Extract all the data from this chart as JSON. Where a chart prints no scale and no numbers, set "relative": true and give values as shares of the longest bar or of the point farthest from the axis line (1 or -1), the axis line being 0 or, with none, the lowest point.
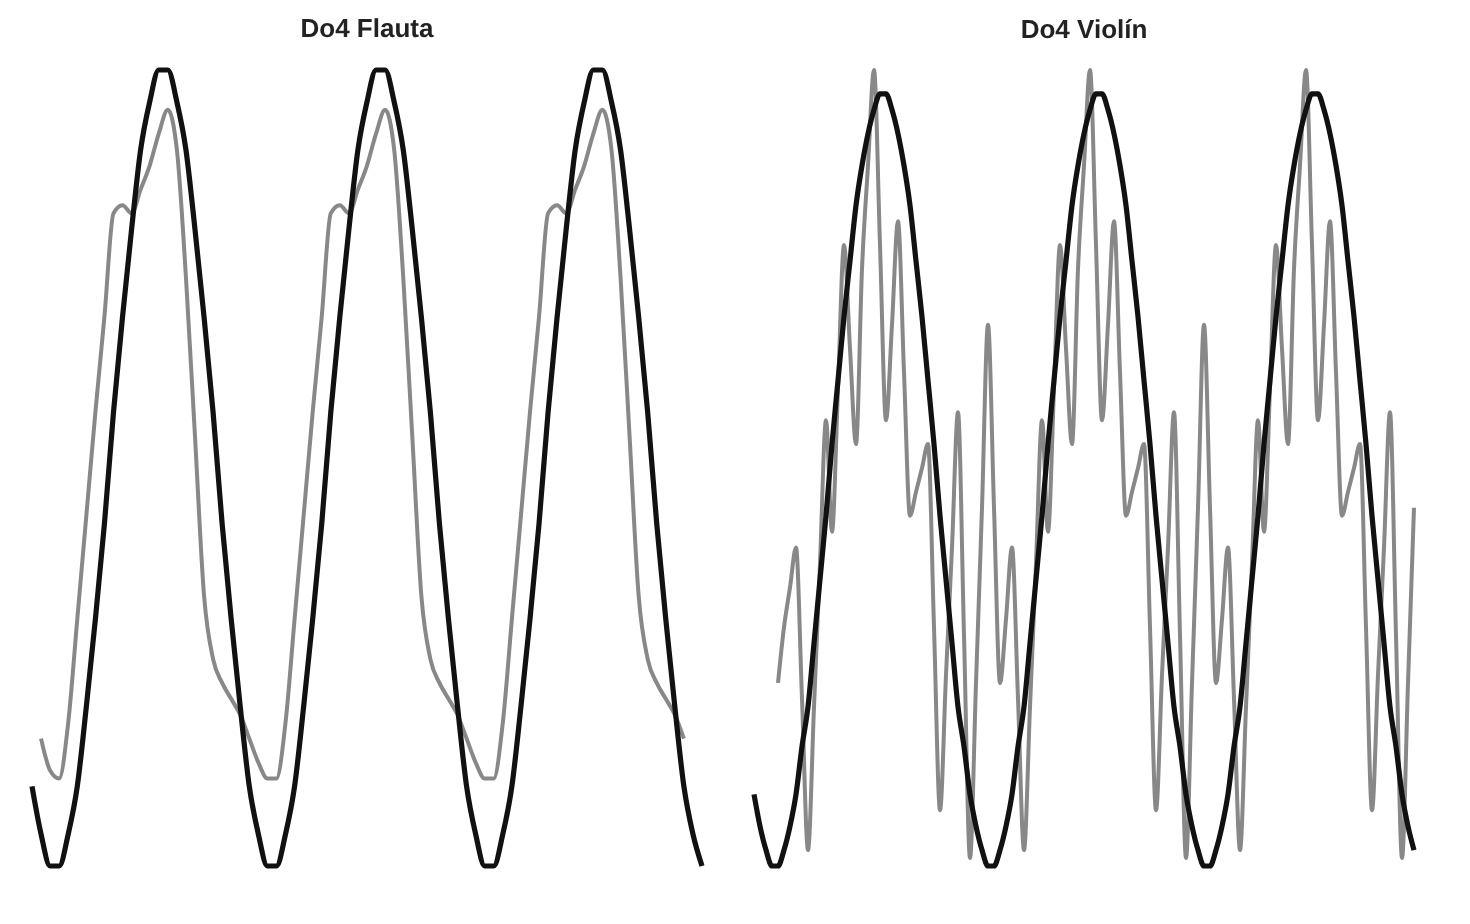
{
  "chart_data": [
    {
      "type": "line",
      "title": "Do4 Flauta",
      "relative": true,
      "categories": [
        null,
        null,
        null,
        null,
        null,
        null,
        null,
        null,
        null,
        null,
        null,
        null,
        null,
        null,
        null,
        null,
        null,
        null,
        null,
        null,
        null,
        null,
        null,
        null,
        null,
        null,
        null,
        null,
        null,
        null,
        null,
        null,
        null,
        null,
        null,
        null,
        null,
        null,
        null,
        null,
        null,
        null,
        null,
        null,
        null,
        null,
        null,
        null,
        null,
        null,
        null,
        null,
        null,
        null,
        null,
        null,
        null,
        null,
        null,
        null,
        null,
        null,
        null,
        null,
        null,
        null,
        null,
        null,
        null,
        null,
        null,
        null,
        null,
        null,
        null
      ],
      "series": [
        {
          "color": "#888888",
          "values": [
            null,
            0.16,
            0.12,
            0.11,
            0.18,
            0.31,
            0.44,
            0.57,
            0.69,
            0.82,
            0.83,
            0.82,
            0.85,
            0.88,
            0.92,
            0.95,
            0.9,
            0.74,
            0.54,
            0.34,
            0.26,
            0.23,
            0.21,
            0.19,
            0.16,
            0.13,
            0.11,
            0.11,
            0.18,
            0.31,
            0.44,
            0.57,
            0.69,
            0.82,
            0.83,
            0.82,
            0.85,
            0.88,
            0.92,
            0.95,
            0.9,
            0.74,
            0.54,
            0.34,
            0.26,
            0.23,
            0.21,
            0.19,
            0.16,
            0.13,
            0.11,
            0.11,
            0.18,
            0.31,
            0.44,
            0.57,
            0.69,
            0.82,
            0.83,
            0.82,
            0.85,
            0.88,
            0.92,
            0.95,
            0.9,
            0.74,
            0.54,
            0.34,
            0.26,
            0.23,
            0.21,
            0.19,
            0.16,
            null,
            null
          ]
        },
        {
          "color": "#111111",
          "values": [
            0.1,
            0.04,
            0,
            0,
            0.04,
            0.1,
            0.2,
            0.31,
            0.43,
            0.57,
            0.69,
            0.8,
            0.9,
            0.96,
            1,
            1,
            0.96,
            0.9,
            0.8,
            0.69,
            0.57,
            0.43,
            0.31,
            0.2,
            0.1,
            0.04,
            0,
            0,
            0.04,
            0.1,
            0.2,
            0.31,
            0.43,
            0.57,
            0.69,
            0.8,
            0.9,
            0.96,
            1,
            1,
            0.96,
            0.9,
            0.8,
            0.69,
            0.57,
            0.43,
            0.31,
            0.2,
            0.1,
            0.04,
            0,
            0,
            0.04,
            0.1,
            0.2,
            0.31,
            0.43,
            0.57,
            0.69,
            0.8,
            0.9,
            0.96,
            1,
            1,
            0.96,
            0.9,
            0.8,
            0.69,
            0.57,
            0.43,
            0.31,
            0.2,
            0.1,
            0.04,
            0
          ]
        }
      ]
    },
    {
      "type": "line",
      "title": "Do4 Violín",
      "relative": true,
      "categories": [
        null,
        null,
        null,
        null,
        null,
        null,
        null,
        null,
        null,
        null,
        null,
        null,
        null,
        null,
        null,
        null,
        null,
        null,
        null,
        null,
        null,
        null,
        null,
        null,
        null,
        null,
        null,
        null,
        null,
        null,
        null,
        null,
        null,
        null,
        null,
        null,
        null,
        null,
        null,
        null,
        null,
        null,
        null,
        null,
        null,
        null,
        null,
        null,
        null,
        null,
        null,
        null,
        null,
        null,
        null,
        null,
        null,
        null,
        null,
        null,
        null,
        null,
        null,
        null,
        null,
        null,
        null,
        null,
        null,
        null,
        null,
        null,
        null,
        null,
        null,
        null,
        null,
        null,
        null,
        null,
        null,
        null,
        null,
        null,
        null,
        null,
        null,
        null,
        null,
        null,
        null,
        null,
        null,
        null,
        null,
        null,
        null,
        null,
        null,
        null,
        null,
        null,
        null,
        null,
        null,
        null,
        null,
        null,
        null,
        null,
        null
      ],
      "series": [
        {
          "color": "#888888",
          "values": [
            null,
            null,
            null,
            null,
            0.23,
            0.3,
            0.35,
            0.4,
            0.21,
            0.02,
            0.2,
            0.38,
            0.56,
            0.42,
            0.6,
            0.78,
            0.65,
            0.53,
            0.75,
            0.88,
            1,
            0.78,
            0.56,
            0.68,
            0.81,
            0.62,
            0.44,
            0.47,
            0.5,
            0.53,
            0.3,
            0.07,
            0.24,
            0.4,
            0.57,
            0.29,
            0.01,
            0.23,
            0.45,
            0.68,
            0.45,
            0.23,
            0.31,
            0.4,
            0.21,
            0.02,
            0.2,
            0.38,
            0.56,
            0.42,
            0.6,
            0.78,
            0.65,
            0.53,
            0.75,
            0.88,
            1,
            0.78,
            0.56,
            0.68,
            0.81,
            0.62,
            0.44,
            0.47,
            0.5,
            0.53,
            0.3,
            0.07,
            0.24,
            0.4,
            0.57,
            0.29,
            0.01,
            0.23,
            0.45,
            0.68,
            0.45,
            0.23,
            0.31,
            0.4,
            0.21,
            0.02,
            0.2,
            0.38,
            0.56,
            0.42,
            0.6,
            0.78,
            0.65,
            0.53,
            0.75,
            0.88,
            1,
            0.78,
            0.56,
            0.68,
            0.81,
            0.62,
            0.44,
            0.47,
            0.5,
            0.53,
            0.3,
            0.07,
            0.24,
            0.4,
            0.57,
            0.29,
            0.01,
            0.23,
            0.45
          ]
        },
        {
          "color": "#111111",
          "values": [
            0.09,
            0.05,
            0.02,
            0,
            0,
            0.02,
            0.05,
            0.09,
            0.15,
            0.2,
            0.28,
            0.36,
            0.44,
            0.53,
            0.61,
            0.69,
            0.76,
            0.83,
            0.88,
            0.92,
            0.95,
            0.97,
            0.97,
            0.95,
            0.92,
            0.88,
            0.83,
            0.76,
            0.69,
            0.61,
            0.53,
            0.44,
            0.36,
            0.28,
            0.2,
            0.15,
            0.09,
            0.05,
            0.02,
            0,
            0,
            0.02,
            0.05,
            0.09,
            0.15,
            0.2,
            0.28,
            0.36,
            0.44,
            0.53,
            0.61,
            0.69,
            0.76,
            0.83,
            0.88,
            0.92,
            0.95,
            0.97,
            0.97,
            0.95,
            0.92,
            0.88,
            0.83,
            0.76,
            0.69,
            0.61,
            0.53,
            0.44,
            0.36,
            0.28,
            0.2,
            0.15,
            0.09,
            0.05,
            0.02,
            0,
            0,
            0.02,
            0.05,
            0.09,
            0.15,
            0.2,
            0.28,
            0.36,
            0.44,
            0.53,
            0.61,
            0.69,
            0.76,
            0.83,
            0.88,
            0.92,
            0.95,
            0.97,
            0.97,
            0.95,
            0.92,
            0.88,
            0.83,
            0.76,
            0.69,
            0.61,
            0.53,
            0.44,
            0.36,
            0.28,
            0.2,
            0.15,
            0.09,
            0.05,
            0.02
          ]
        }
      ]
    }
  ]
}
